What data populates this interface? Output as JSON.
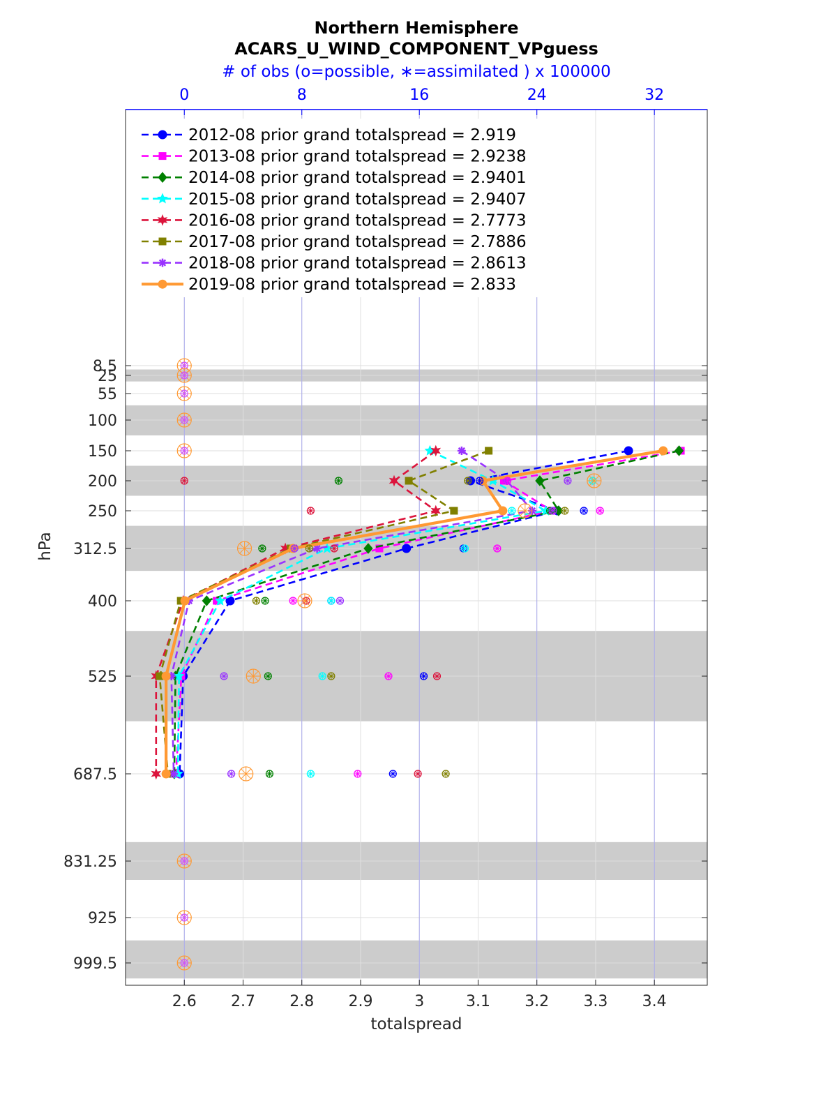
{
  "chart_data": {
    "type": "line",
    "title": "Northern Hemisphere",
    "subtitle": "ACARS_U_WIND_COMPONENT_VPguess",
    "top_axis_label": "# of obs (o=possible, ∗=assimilated ) x 100000",
    "xlabel": "totalspread",
    "ylabel": "hPa",
    "xlim": [
      2.5,
      3.49
    ],
    "top_xlim": [
      -4,
      35.6
    ],
    "x_ticks": [
      "2.6",
      "2.7",
      "2.8",
      "2.9",
      "3",
      "3.1",
      "3.2",
      "3.3",
      "3.4"
    ],
    "top_ticks": [
      "0",
      "8",
      "16",
      "24",
      "32"
    ],
    "levels": [
      "8.5",
      "25",
      "55",
      "100",
      "150",
      "200",
      "250",
      "312.5",
      "400",
      "525",
      "687.5",
      "831.25",
      "925",
      "999.5"
    ],
    "level_values": [
      8.5,
      25,
      55,
      100,
      150,
      200,
      250,
      312.5,
      400,
      525,
      687.5,
      831.25,
      925,
      999.5
    ],
    "shaded_bands_hPa": [
      [
        15,
        35
      ],
      [
        75,
        125
      ],
      [
        175,
        225
      ],
      [
        275,
        350
      ],
      [
        450,
        600
      ],
      [
        800,
        862.5
      ],
      [
        962.5,
        1025
      ]
    ],
    "legend_placement": "top-left",
    "series": [
      {
        "name": "2012-08 prior grand totalspread = 2.919",
        "color": "#0000ff",
        "marker": "circle",
        "dash": "dashed",
        "levels": [
          150,
          200,
          250,
          312.5,
          400,
          525,
          687.5
        ],
        "x": [
          3.356,
          3.087,
          3.235,
          2.978,
          2.678,
          2.598,
          2.592
        ],
        "obs_possible": [
          null,
          20.1,
          27.2,
          19.0,
          10.0,
          16.3,
          14.2
        ],
        "obs_assimilated": [
          null,
          20.0,
          27.1,
          18.9,
          9.95,
          16.2,
          14.1
        ]
      },
      {
        "name": "2013-08 prior grand totalspread = 2.9238",
        "color": "#ff00ff",
        "marker": "square",
        "dash": "dashed",
        "levels": [
          150,
          200,
          250,
          312.5,
          400,
          525,
          687.5
        ],
        "x": [
          3.445,
          3.144,
          3.225,
          2.932,
          2.655,
          2.595,
          2.586
        ],
        "obs_possible": [
          null,
          22.0,
          28.3,
          21.3,
          7.4,
          13.9,
          11.8
        ],
        "obs_assimilated": [
          null,
          21.9,
          28.2,
          21.2,
          7.35,
          13.8,
          11.7
        ]
      },
      {
        "name": "2014-08 prior grand totalspread = 2.9401",
        "color": "#008000",
        "marker": "diamond",
        "dash": "dashed",
        "levels": [
          150,
          200,
          250,
          312.5,
          400,
          525,
          687.5
        ],
        "x": [
          3.442,
          3.205,
          3.237,
          2.913,
          2.638,
          2.585,
          2.583
        ],
        "obs_possible": [
          null,
          10.5,
          24.9,
          5.3,
          5.5,
          5.7,
          5.8
        ],
        "obs_assimilated": [
          null,
          10.4,
          24.8,
          5.2,
          5.45,
          5.6,
          5.7
        ]
      },
      {
        "name": "2015-08 prior grand totalspread = 2.9407",
        "color": "#00ffff",
        "marker": "star",
        "dash": "dashed",
        "levels": [
          150,
          200,
          250,
          312.5,
          400,
          525,
          687.5
        ],
        "x": [
          3.018,
          3.125,
          3.215,
          2.843,
          2.661,
          2.591,
          2.589
        ],
        "obs_possible": [
          null,
          27.8,
          22.3,
          19.1,
          10.0,
          9.4,
          8.6
        ],
        "obs_assimilated": [
          null,
          27.7,
          22.2,
          19.0,
          9.95,
          9.3,
          8.5
        ]
      },
      {
        "name": "2016-08 prior grand totalspread = 2.7773",
        "color": "#dc143c",
        "marker": "hexagram",
        "dash": "dashed",
        "levels": [
          150,
          200,
          250,
          312.5,
          400,
          525,
          687.5
        ],
        "x": [
          3.028,
          2.957,
          3.028,
          2.772,
          2.598,
          2.552,
          2.552
        ],
        "obs_possible": [
          null,
          0,
          8.6,
          10.2,
          8.3,
          17.2,
          15.9
        ],
        "obs_assimilated": [
          null,
          0,
          8.5,
          10.1,
          8.25,
          17.1,
          15.8
        ]
      },
      {
        "name": "2017-08 prior grand totalspread = 2.7886",
        "color": "#808000",
        "marker": "square",
        "dash": "dashed",
        "levels": [
          150,
          200,
          250,
          312.5,
          400,
          525,
          687.5
        ],
        "x": [
          3.118,
          2.982,
          3.059,
          2.781,
          2.594,
          2.558,
          2.572
        ],
        "obs_possible": [
          null,
          19.3,
          25.9,
          8.5,
          4.9,
          10.0,
          17.8
        ],
        "obs_assimilated": [
          null,
          19.2,
          25.8,
          8.4,
          4.85,
          9.9,
          17.7
        ]
      },
      {
        "name": "2018-08 prior grand totalspread = 2.8613",
        "color": "#9933ff",
        "marker": "asterisk",
        "dash": "dashed",
        "levels": [
          150,
          200,
          250,
          312.5,
          400,
          525,
          687.5
        ],
        "x": [
          3.072,
          3.149,
          3.192,
          2.826,
          2.608,
          2.578,
          2.582
        ],
        "obs_possible": [
          null,
          26.1,
          25.1,
          7.5,
          10.6,
          2.7,
          3.2
        ],
        "obs_assimilated": [
          null,
          26.0,
          25.0,
          7.4,
          10.55,
          2.6,
          3.1
        ]
      },
      {
        "name": "2019-08 prior grand totalspread = 2.833",
        "color": "#ff9933",
        "marker": "circle",
        "dash": "solid",
        "levels": [
          150,
          200,
          250,
          312.5,
          400,
          525,
          687.5
        ],
        "x": [
          3.415,
          3.108,
          3.142,
          2.785,
          2.601,
          2.569,
          2.569
        ],
        "obs_possible": [
          0,
          27.9,
          23.2,
          4.1,
          8.2,
          4.7,
          4.2
        ],
        "obs_assimilated": [
          0,
          27.8,
          23.1,
          4.0,
          8.15,
          4.6,
          4.1
        ]
      }
    ],
    "zero_obs_levels": [
      8.5,
      25,
      55,
      100,
      150,
      831.25,
      925,
      999.5
    ]
  }
}
